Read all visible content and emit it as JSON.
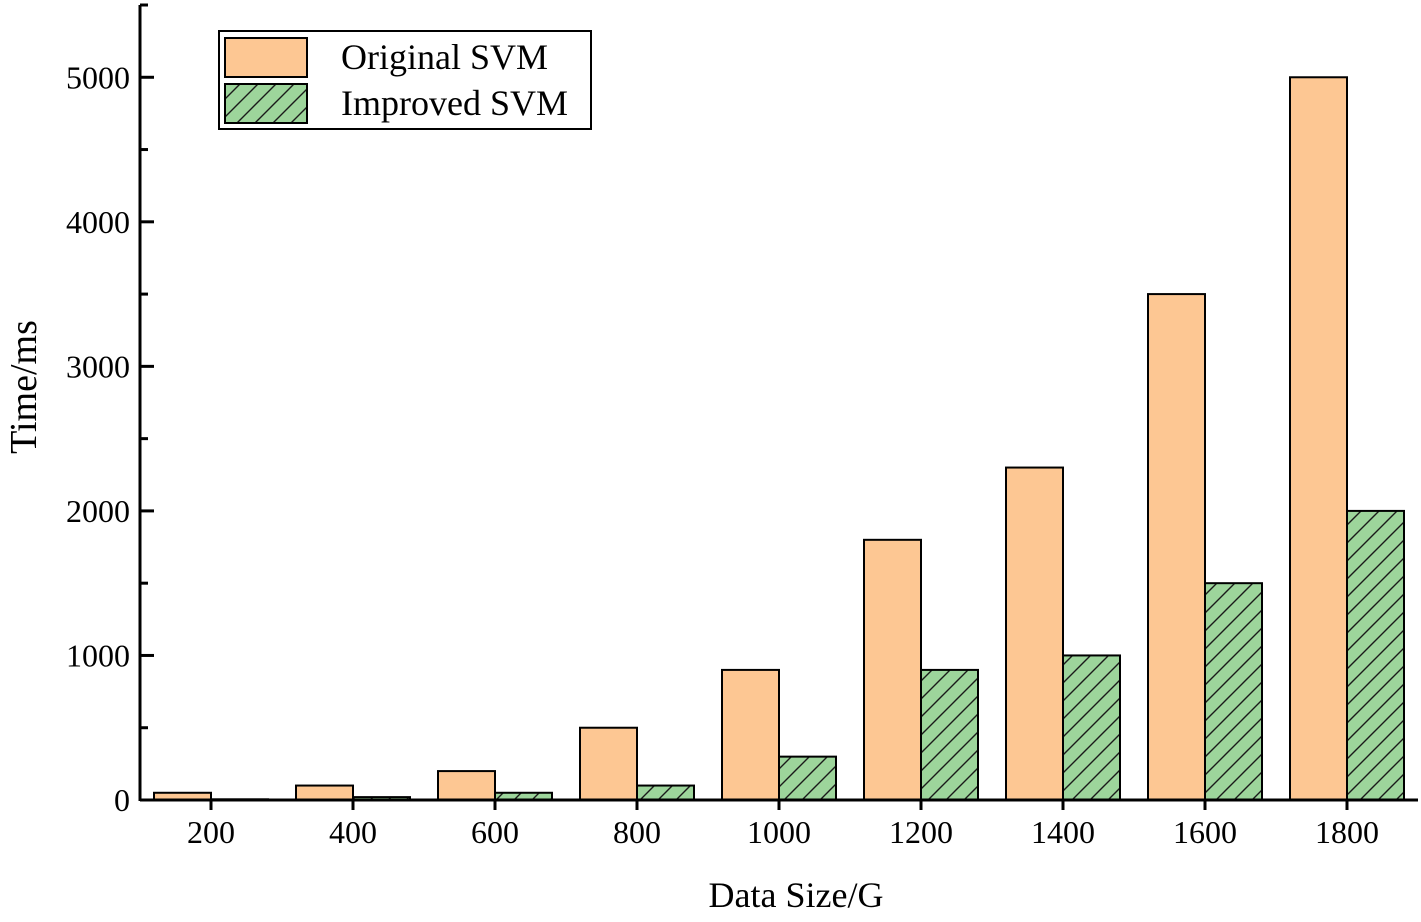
{
  "chart_data": {
    "type": "bar",
    "title": "",
    "xlabel": "Data Size/G",
    "ylabel": "Time/ms",
    "categories": [
      "200",
      "400",
      "600",
      "800",
      "1000",
      "1200",
      "1400",
      "1600",
      "1800"
    ],
    "series": [
      {
        "name": "Original SVM",
        "values": [
          50,
          100,
          200,
          500,
          900,
          1800,
          2300,
          3500,
          5000
        ],
        "color": "#fdc793",
        "pattern": "solid"
      },
      {
        "name": "Improved SVM",
        "values": [
          5,
          20,
          50,
          100,
          300,
          900,
          1000,
          1500,
          2000
        ],
        "color": "#9dd59b",
        "pattern": "diagonal-hatch"
      }
    ],
    "ylim": [
      0,
      5500
    ],
    "yticks": [
      0,
      1000,
      2000,
      3000,
      4000,
      5000
    ],
    "grid": false,
    "legend_position": "top-left"
  }
}
